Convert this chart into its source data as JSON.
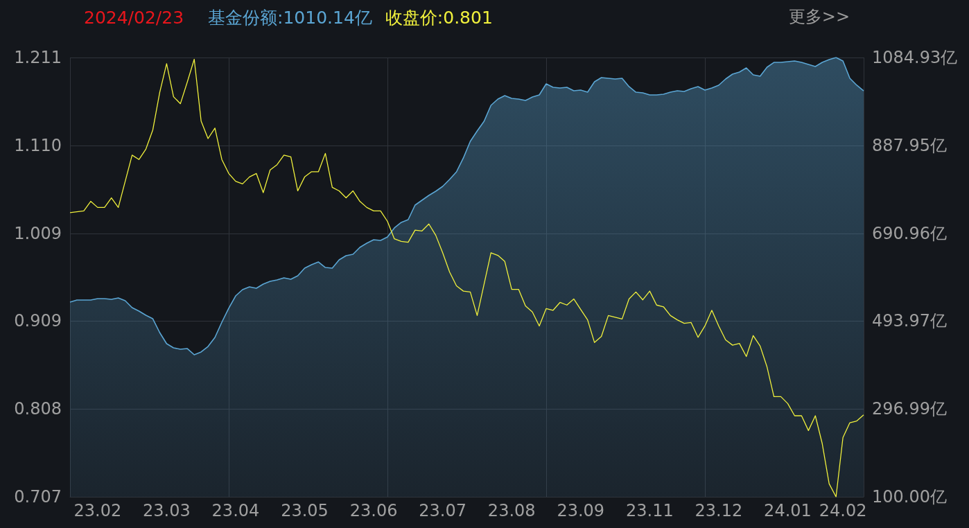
{
  "chart_data": {
    "type": "line",
    "title": "2024/02/23",
    "legend": "top left",
    "marker": "none",
    "grid": true,
    "annotations": [
      "更多>>"
    ],
    "categories": [
      null,
      null,
      null,
      null,
      "23.02",
      null,
      null,
      null,
      null,
      null,
      null,
      null,
      null,
      null,
      "23.03",
      null,
      null,
      null,
      null,
      null,
      null,
      null,
      null,
      null,
      "23.04",
      null,
      null,
      null,
      null,
      null,
      null,
      null,
      null,
      null,
      "23.05",
      null,
      null,
      null,
      null,
      null,
      null,
      null,
      null,
      null,
      "23.06",
      null,
      null,
      null,
      null,
      null,
      null,
      null,
      null,
      null,
      "23.07",
      null,
      null,
      null,
      null,
      null,
      null,
      null,
      null,
      null,
      "23.08",
      null,
      null,
      null,
      null,
      null,
      null,
      null,
      null,
      null,
      "23.09",
      null,
      null,
      null,
      null,
      null,
      null,
      null,
      null,
      null,
      "23.11",
      null,
      null,
      null,
      null,
      null,
      null,
      null,
      null,
      null,
      "23.12",
      null,
      null,
      null,
      null,
      null,
      null,
      null,
      null,
      null,
      "24.01",
      null,
      null,
      null,
      null,
      null,
      null,
      null,
      "24.02",
      null,
      null,
      null
    ],
    "ylim": [
      0.707,
      1.211
    ],
    "yticks": [
      0.707,
      0.808,
      0.909,
      1.009,
      {
        "value": 1.11,
        "label": "1.110"
      },
      1.211
    ],
    "y2lim": [
      100,
      1084.93
    ],
    "y2ticks": [
      {
        "value": 100,
        "label": "100.00亿"
      },
      {
        "value": 296.99,
        "label": "296.99亿"
      },
      {
        "value": 493.97,
        "label": "493.97亿"
      },
      {
        "value": 690.96,
        "label": "690.96亿"
      },
      {
        "value": 887.95,
        "label": "887.95亿"
      },
      {
        "value": 1084.93,
        "label": "1084.93亿"
      }
    ],
    "series": [
      {
        "name": "基金份额:1010.14亿",
        "type": "area",
        "axis": "y2",
        "color": "#5ba6d4",
        "values": [
          536.5,
          541.2,
          541.2,
          541.2,
          544.3,
          544.3,
          542.7,
          545.9,
          539.6,
          524.1,
          516.3,
          507.0,
          499.2,
          468.2,
          443.3,
          434.0,
          430.9,
          432.4,
          418.5,
          424.7,
          437.1,
          457.3,
          491.5,
          522.6,
          550.5,
          564.5,
          570.7,
          567.6,
          576.9,
          583.1,
          586.2,
          590.9,
          587.8,
          595.6,
          612.7,
          620.4,
          626.6,
          614.2,
          612.7,
          631.3,
          640.6,
          643.7,
          659.3,
          668.6,
          676.3,
          674.8,
          682.6,
          702.8,
          715.2,
          721.4,
          754.0,
          764.9,
          775.8,
          785.1,
          796.0,
          811.5,
          828.6,
          859.7,
          897.0,
          920.2,
          942.0,
          977.7,
          991.7,
          999.5,
          993.3,
          991.7,
          988.6,
          996.4,
          1001.0,
          1025.9,
          1018.1,
          1016.6,
          1018.1,
          1010.4,
          1011.9,
          1007.2,
          1030.5,
          1039.9,
          1038.3,
          1036.8,
          1038.3,
          1019.7,
          1007.2,
          1005.7,
          1001.0,
          1001.0,
          1002.6,
          1007.2,
          1010.4,
          1008.8,
          1015.0,
          1019.7,
          1011.9,
          1016.6,
          1022.8,
          1036.8,
          1047.6,
          1052.3,
          1061.6,
          1046.1,
          1043.0,
          1063.2,
          1074.0,
          1074.0,
          1075.6,
          1077.2,
          1074.0,
          1069.4,
          1064.7,
          1074.0,
          1080.3,
          1084.9,
          1077.2,
          1038.3,
          1022.8,
          1010.14
        ]
      },
      {
        "name": "收盘价:0.801",
        "type": "line",
        "color": "#f0f03c",
        "values": [
          1.033,
          1.034,
          1.035,
          1.046,
          1.039,
          1.039,
          1.05,
          1.039,
          1.069,
          1.099,
          1.094,
          1.106,
          1.128,
          1.171,
          1.204,
          1.166,
          1.158,
          1.183,
          1.209,
          1.138,
          1.118,
          1.13,
          1.094,
          1.078,
          1.069,
          1.066,
          1.074,
          1.078,
          1.056,
          1.082,
          1.088,
          1.099,
          1.097,
          1.058,
          1.074,
          1.08,
          1.08,
          1.101,
          1.062,
          1.058,
          1.05,
          1.058,
          1.046,
          1.039,
          1.035,
          1.035,
          1.023,
          1.003,
          1.0,
          0.999,
          1.013,
          1.012,
          1.02,
          1.007,
          0.987,
          0.965,
          0.949,
          0.943,
          0.942,
          0.915,
          0.951,
          0.987,
          0.984,
          0.977,
          0.945,
          0.945,
          0.926,
          0.919,
          0.903,
          0.923,
          0.921,
          0.93,
          0.927,
          0.934,
          0.922,
          0.91,
          0.884,
          0.891,
          0.915,
          0.913,
          0.911,
          0.934,
          0.942,
          0.933,
          0.943,
          0.927,
          0.925,
          0.915,
          0.91,
          0.906,
          0.907,
          0.89,
          0.903,
          0.921,
          0.903,
          0.887,
          0.881,
          0.883,
          0.868,
          0.892,
          0.88,
          0.856,
          0.822,
          0.822,
          0.814,
          0.8,
          0.8,
          0.783,
          0.8,
          0.768,
          0.722,
          0.707,
          0.775,
          0.792,
          0.794,
          0.801
        ]
      }
    ]
  }
}
